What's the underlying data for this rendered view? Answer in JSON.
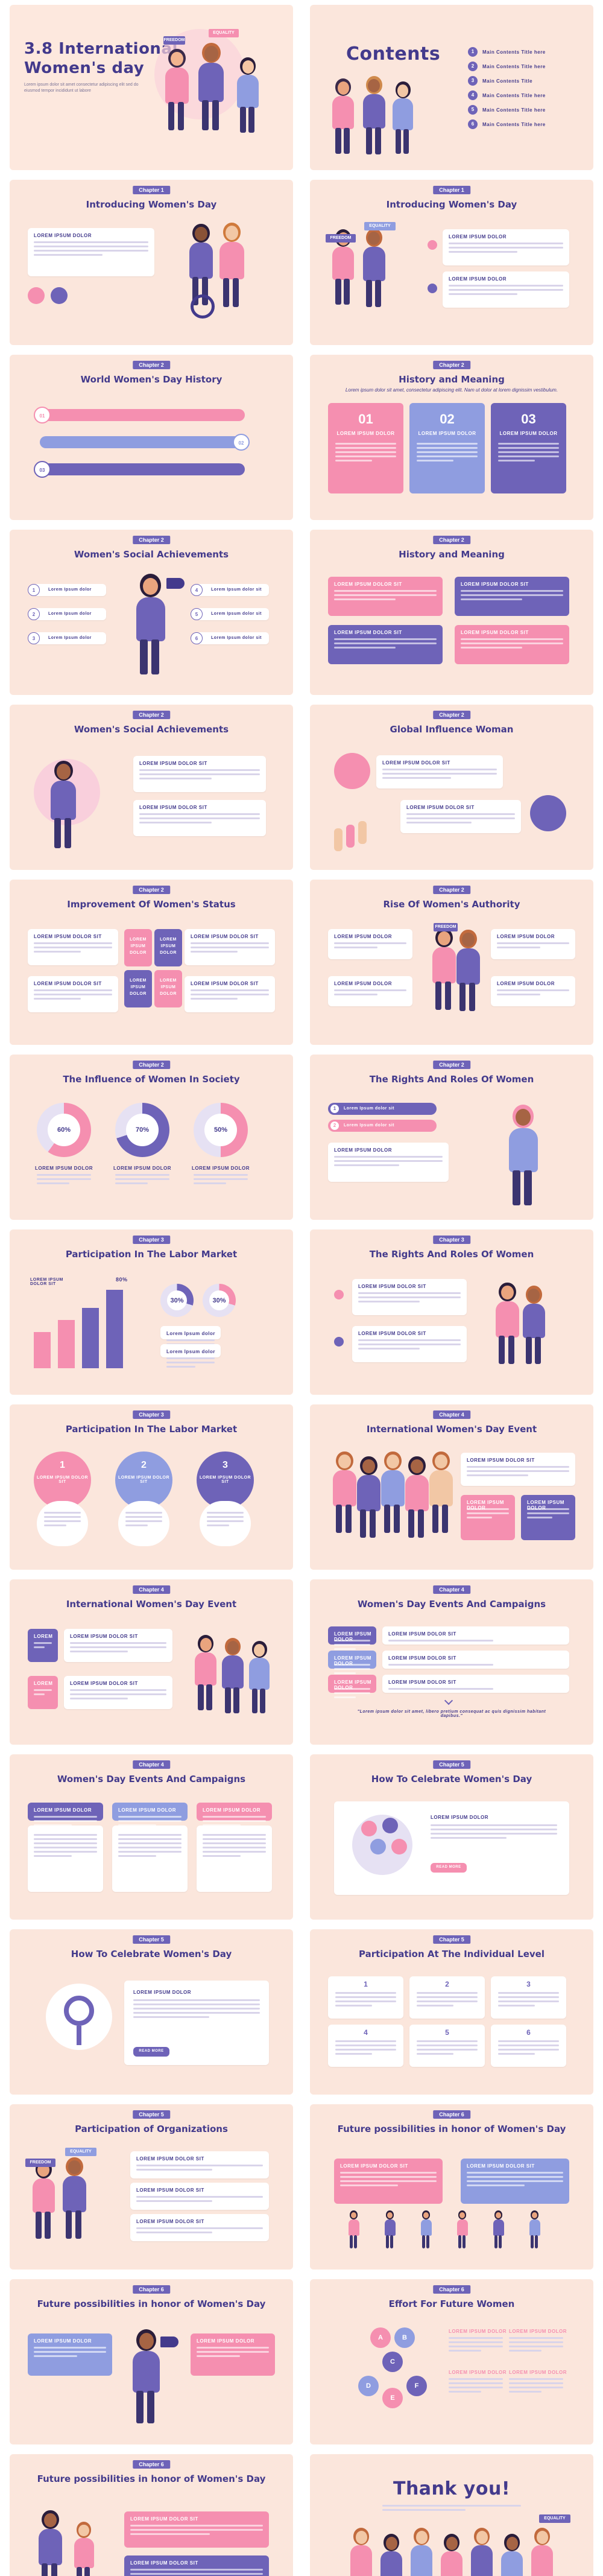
{
  "cover": {
    "title_line1": "3.8 International",
    "title_line2": "Women's day",
    "blurb": "Lorem ipsum dolor sit amet consectetur adipiscing elit sed do eiusmod tempor incididunt ut labore"
  },
  "contents": {
    "title": "Contents",
    "items": [
      "Main Contents Title here",
      "Main Contents Title here",
      "Main Contents Title",
      "Main Contents Title here",
      "Main Contents Title here",
      "Main Contents Title here"
    ]
  },
  "slides": [
    {
      "chapter": "Chapter 1",
      "title": "Introducing Women's Day"
    },
    {
      "chapter": "Chapter 1",
      "title": "Introducing Women's Day"
    },
    {
      "chapter": "Chapter 2",
      "title": "World Women's Day History"
    },
    {
      "chapter": "Chapter 2",
      "title": "History and Meaning"
    },
    {
      "chapter": "Chapter 2",
      "title": "Women's Social Achievements"
    },
    {
      "chapter": "Chapter 2",
      "title": "History and Meaning"
    },
    {
      "chapter": "Chapter 2",
      "title": "Women's Social Achievements"
    },
    {
      "chapter": "Chapter 2",
      "title": "Global Influence Woman"
    },
    {
      "chapter": "Chapter 2",
      "title": "Improvement Of Women's Status"
    },
    {
      "chapter": "Chapter 2",
      "title": "Rise Of Women's Authority"
    },
    {
      "chapter": "Chapter 2",
      "title": "The Influence of Women In Society"
    },
    {
      "chapter": "Chapter 2",
      "title": "The Rights And Roles Of Women"
    },
    {
      "chapter": "Chapter 3",
      "title": "Participation In The Labor Market"
    },
    {
      "chapter": "Chapter 3",
      "title": "The Rights And Roles Of Women"
    },
    {
      "chapter": "Chapter 3",
      "title": "Participation In The Labor Market"
    },
    {
      "chapter": "Chapter 4",
      "title": "International Women's Day Event"
    },
    {
      "chapter": "Chapter 4",
      "title": "International Women's Day Event"
    },
    {
      "chapter": "Chapter 4",
      "title": "Women's Day Events And Campaigns"
    },
    {
      "chapter": "Chapter 4",
      "title": "Women's Day Events And Campaigns"
    },
    {
      "chapter": "Chapter 5",
      "title": "How To Celebrate Women's Day"
    },
    {
      "chapter": "Chapter 5",
      "title": "How To Celebrate Women's Day"
    },
    {
      "chapter": "Chapter 5",
      "title": "Participation At The Individual Level"
    },
    {
      "chapter": "Chapter 5",
      "title": "Participation of Organizations"
    },
    {
      "chapter": "Chapter 6",
      "title": "Future possibilities in honor of Women's Day"
    },
    {
      "chapter": "Chapter 6",
      "title": "Future possibilities in honor of Women's Day"
    },
    {
      "chapter": "Chapter 6",
      "title": "Effort For Future Women"
    },
    {
      "chapter": "Chapter 6",
      "title": "Future possibilities in honor of Women's Day"
    }
  ],
  "history_meaning_sub": "Lorem ipsum dolor sit amet, consectetur adipiscing elit. Nam ut dolor at lorem dignissim vestibulum.",
  "labels": {
    "lorem_dolor": "LOREM IPSUM DOLOR",
    "lorem_dolor_sit": "LOREM IPSUM DOLOR SIT",
    "lorem_short": "Lorem Ipsum dolor",
    "lorem_sit": "Lorem Ipsum dolor sit",
    "lorem_stack_1": "LOREM",
    "lorem_stack_2": "IPSUM",
    "lorem_stack_3": "DOLOR",
    "read_more": "READ MORE",
    "equality": "EQUALITY",
    "freedom": "FREEDOM",
    "quote": "\"Lorem ipsum dolor sit amet, libero pretium consequat ac quis dignissim habitant dapibus.\"",
    "thank_you": "Thank you!"
  },
  "numbers": {
    "n01": "01",
    "n02": "02",
    "n03": "03",
    "i1": "1",
    "i2": "2",
    "i3": "3",
    "i4": "4",
    "i5": "5",
    "i6": "6",
    "pct60": "60%",
    "pct70": "70%",
    "pct50": "50%",
    "pct30": "30%",
    "big_stat": "80%",
    "A": "A",
    "B": "B",
    "C": "C",
    "D": "D",
    "E": "E",
    "F": "F"
  },
  "colors": {
    "violet": "#6e63b8",
    "pink": "#f58fb0",
    "lilac": "#8f9de0",
    "peach": "#fbe6dc",
    "navy": "#433a8c"
  }
}
